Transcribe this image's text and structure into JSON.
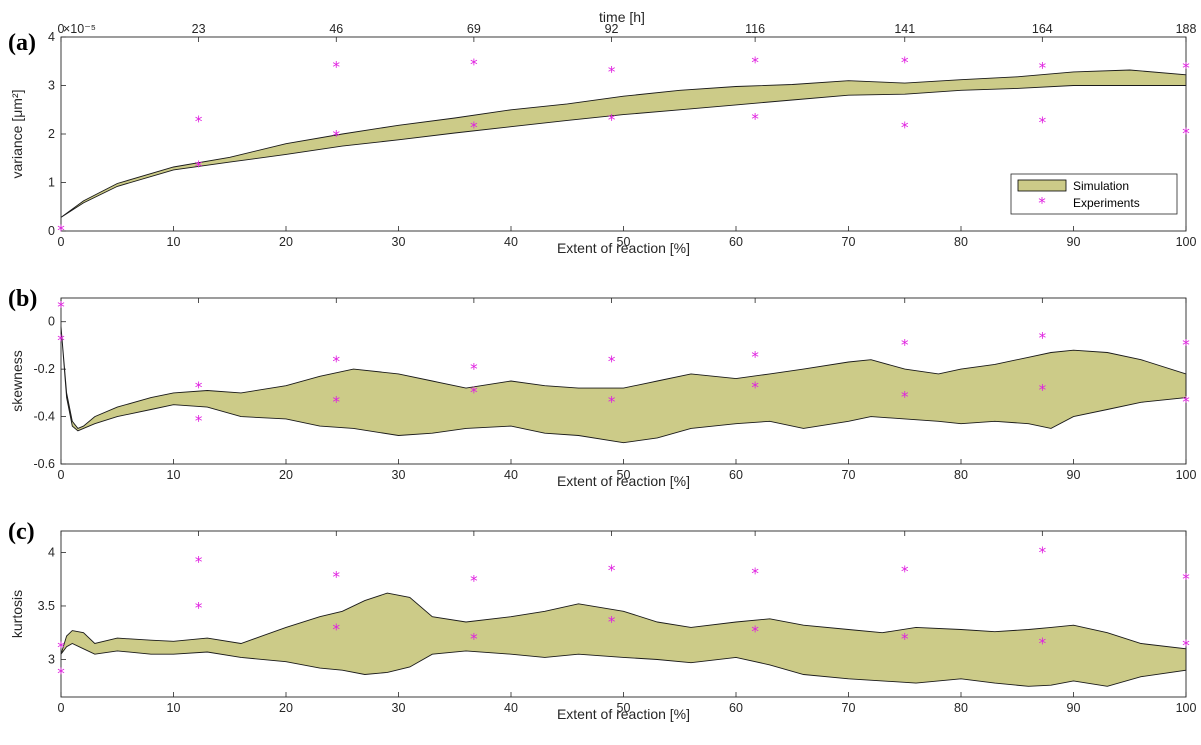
{
  "top_axis": {
    "label": "time [h]",
    "ticks": [
      {
        "x": 0,
        "label": "0"
      },
      {
        "x": 12.23,
        "label": "23"
      },
      {
        "x": 24.47,
        "label": "46"
      },
      {
        "x": 36.7,
        "label": "69"
      },
      {
        "x": 48.94,
        "label": "92"
      },
      {
        "x": 61.7,
        "label": "116"
      },
      {
        "x": 75.0,
        "label": "141"
      },
      {
        "x": 87.23,
        "label": "164"
      },
      {
        "x": 100,
        "label": "188"
      }
    ]
  },
  "colors": {
    "band": "#cccb88",
    "band_edge": "#1a1a1a",
    "experiments": "#e020e0"
  },
  "legend": {
    "position": "bottom-right",
    "simulation": "Simulation",
    "experiments": "Experiments"
  },
  "chart_data": [
    {
      "type": "area",
      "panel_label": "(a)",
      "xlabel": "Extent of reaction [%]",
      "ylabel": "variance [μm²]",
      "exponent": "×10⁻⁵",
      "xlim": [
        0,
        100
      ],
      "ylim": [
        0,
        4
      ],
      "xticks": [
        0,
        10,
        20,
        30,
        40,
        50,
        60,
        70,
        80,
        90,
        100
      ],
      "yticks": [
        0,
        1,
        2,
        3,
        4
      ],
      "simulation_band": {
        "x": [
          0,
          2,
          5,
          10,
          15,
          20,
          25,
          30,
          35,
          40,
          45,
          50,
          55,
          60,
          65,
          70,
          75,
          80,
          85,
          90,
          95,
          100
        ],
        "upper": [
          0.28,
          0.62,
          0.98,
          1.32,
          1.52,
          1.8,
          2.0,
          2.18,
          2.33,
          2.5,
          2.62,
          2.78,
          2.9,
          2.98,
          3.02,
          3.1,
          3.05,
          3.12,
          3.18,
          3.28,
          3.32,
          3.22
        ],
        "lower": [
          0.28,
          0.58,
          0.92,
          1.26,
          1.42,
          1.58,
          1.75,
          1.88,
          2.02,
          2.15,
          2.28,
          2.4,
          2.5,
          2.6,
          2.7,
          2.8,
          2.82,
          2.9,
          2.94,
          3.0,
          3.0,
          3.0
        ]
      },
      "experiments": {
        "x": [
          0,
          12.23,
          12.23,
          24.47,
          24.47,
          36.7,
          36.7,
          48.94,
          48.94,
          61.7,
          61.7,
          75.0,
          75.0,
          87.23,
          87.23,
          100,
          100
        ],
        "y": [
          0.05,
          2.3,
          1.37,
          3.42,
          2.0,
          3.47,
          2.18,
          3.32,
          2.33,
          3.52,
          2.35,
          3.52,
          2.18,
          3.4,
          2.28,
          3.4,
          2.05
        ]
      }
    },
    {
      "type": "area",
      "panel_label": "(b)",
      "xlabel": "Extent of reaction [%]",
      "ylabel": "skewness",
      "xlim": [
        0,
        100
      ],
      "ylim": [
        -0.6,
        0.1
      ],
      "xticks": [
        0,
        10,
        20,
        30,
        40,
        50,
        60,
        70,
        80,
        90,
        100
      ],
      "yticks": [
        -0.6,
        -0.4,
        -0.2,
        0
      ],
      "simulation_band": {
        "x": [
          0,
          0.5,
          1,
          1.5,
          2,
          3,
          5,
          8,
          10,
          13,
          16,
          20,
          23,
          26,
          30,
          33,
          36,
          40,
          43,
          46,
          50,
          53,
          56,
          60,
          63,
          66,
          70,
          72,
          75,
          78,
          80,
          83,
          86,
          88,
          90,
          93,
          96,
          100
        ],
        "upper": [
          -0.02,
          -0.3,
          -0.42,
          -0.45,
          -0.44,
          -0.4,
          -0.36,
          -0.32,
          -0.3,
          -0.29,
          -0.3,
          -0.27,
          -0.23,
          -0.2,
          -0.22,
          -0.25,
          -0.28,
          -0.25,
          -0.27,
          -0.28,
          -0.28,
          -0.25,
          -0.22,
          -0.24,
          -0.22,
          -0.2,
          -0.17,
          -0.16,
          -0.2,
          -0.22,
          -0.2,
          -0.18,
          -0.15,
          -0.13,
          -0.12,
          -0.13,
          -0.16,
          -0.22
        ],
        "lower": [
          -0.02,
          -0.32,
          -0.44,
          -0.46,
          -0.45,
          -0.43,
          -0.4,
          -0.37,
          -0.35,
          -0.36,
          -0.4,
          -0.41,
          -0.44,
          -0.45,
          -0.48,
          -0.47,
          -0.45,
          -0.44,
          -0.47,
          -0.48,
          -0.51,
          -0.49,
          -0.45,
          -0.43,
          -0.42,
          -0.45,
          -0.42,
          -0.4,
          -0.41,
          -0.42,
          -0.43,
          -0.42,
          -0.43,
          -0.45,
          -0.4,
          -0.37,
          -0.34,
          -0.32
        ]
      },
      "experiments": {
        "x": [
          0,
          0,
          12.23,
          12.23,
          24.47,
          24.47,
          36.7,
          36.7,
          48.94,
          48.94,
          61.7,
          61.7,
          75.0,
          75.0,
          87.23,
          87.23,
          100,
          100
        ],
        "y": [
          0.07,
          -0.07,
          -0.27,
          -0.41,
          -0.16,
          -0.33,
          -0.19,
          -0.29,
          -0.16,
          -0.33,
          -0.14,
          -0.27,
          -0.09,
          -0.31,
          -0.06,
          -0.28,
          -0.09,
          -0.33
        ]
      }
    },
    {
      "type": "area",
      "panel_label": "(c)",
      "xlabel": "Extent of reaction [%]",
      "ylabel": "kurtosis",
      "xlim": [
        0,
        100
      ],
      "ylim": [
        2.65,
        4.2
      ],
      "xticks": [
        0,
        10,
        20,
        30,
        40,
        50,
        60,
        70,
        80,
        90,
        100
      ],
      "yticks": [
        3,
        3.5,
        4
      ],
      "simulation_band": {
        "x": [
          0,
          0.5,
          1,
          2,
          3,
          5,
          8,
          10,
          13,
          16,
          20,
          23,
          25,
          27,
          29,
          31,
          33,
          36,
          40,
          43,
          46,
          50,
          53,
          56,
          60,
          63,
          66,
          70,
          73,
          76,
          80,
          83,
          86,
          88,
          90,
          93,
          96,
          100
        ],
        "upper": [
          3.05,
          3.22,
          3.27,
          3.25,
          3.15,
          3.2,
          3.18,
          3.17,
          3.2,
          3.15,
          3.3,
          3.4,
          3.45,
          3.55,
          3.62,
          3.58,
          3.4,
          3.35,
          3.4,
          3.45,
          3.52,
          3.45,
          3.35,
          3.3,
          3.35,
          3.38,
          3.32,
          3.28,
          3.25,
          3.3,
          3.28,
          3.26,
          3.28,
          3.3,
          3.32,
          3.25,
          3.15,
          3.1
        ],
        "lower": [
          3.05,
          3.12,
          3.15,
          3.1,
          3.05,
          3.08,
          3.05,
          3.05,
          3.07,
          3.02,
          2.98,
          2.92,
          2.9,
          2.86,
          2.88,
          2.93,
          3.05,
          3.08,
          3.05,
          3.02,
          3.05,
          3.02,
          3.0,
          2.97,
          3.02,
          2.95,
          2.86,
          2.82,
          2.8,
          2.78,
          2.82,
          2.78,
          2.75,
          2.76,
          2.8,
          2.75,
          2.84,
          2.9
        ]
      },
      "experiments": {
        "x": [
          0,
          0,
          12.23,
          12.23,
          24.47,
          24.47,
          36.7,
          36.7,
          48.94,
          48.94,
          61.7,
          61.7,
          75.0,
          75.0,
          87.23,
          87.23,
          100,
          100
        ],
        "y": [
          3.13,
          2.89,
          3.93,
          3.5,
          3.79,
          3.3,
          3.75,
          3.21,
          3.85,
          3.37,
          3.82,
          3.28,
          3.84,
          3.21,
          4.02,
          3.17,
          3.77,
          3.15
        ]
      }
    }
  ]
}
